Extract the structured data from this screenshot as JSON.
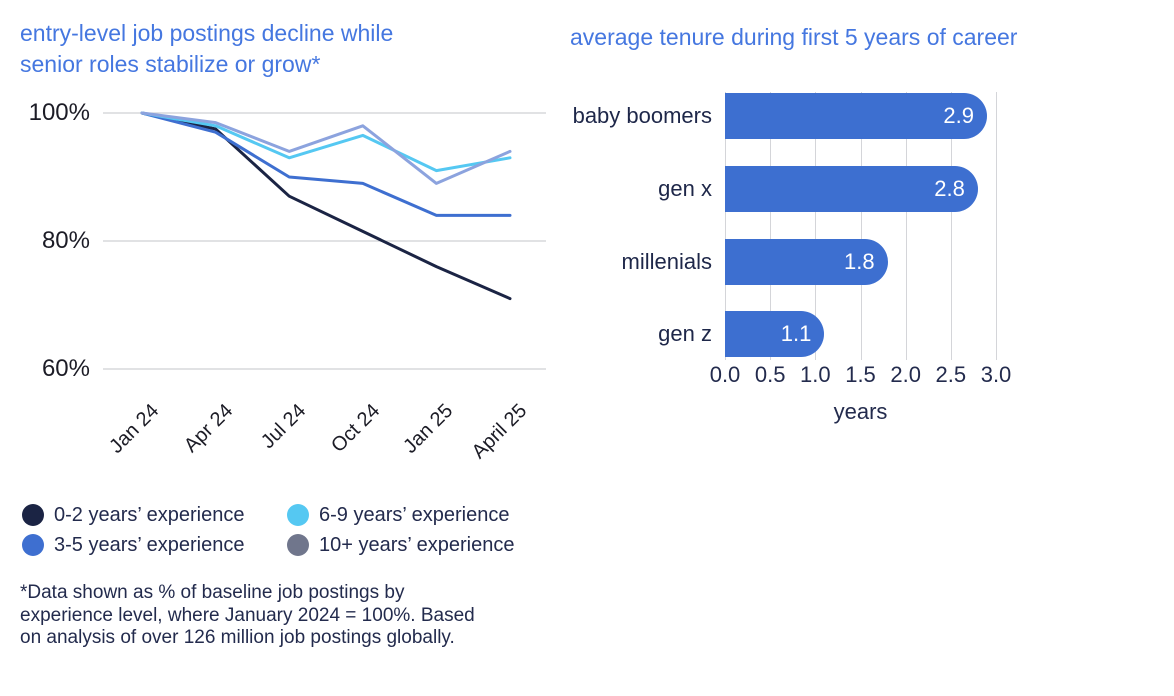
{
  "chart_data": [
    {
      "type": "line",
      "title_lines": [
        "entry-level job postings decline while",
        "senior roles stabilize or grow*"
      ],
      "x": [
        "Jan 24",
        "Apr 24",
        "Jul 24",
        "Oct 24",
        "Jan 25",
        "April 25"
      ],
      "ylim": [
        60,
        100
      ],
      "yticks": [
        {
          "label": "100%",
          "value": 100
        },
        {
          "label": "80%",
          "value": 80
        },
        {
          "label": "60%",
          "value": 60
        }
      ],
      "grid": "horizontal-only",
      "legend_position": "below-left",
      "series": [
        {
          "name": "0-2 years’ experience",
          "color": "#1b2444",
          "values": [
            100,
            97.5,
            87,
            81.5,
            76,
            71
          ]
        },
        {
          "name": "3-5 years’ experience",
          "color": "#3e6fd0",
          "values": [
            100,
            97,
            90,
            89,
            84,
            84
          ]
        },
        {
          "name": "6-9 years’ experience",
          "color": "#55c8f2",
          "values": [
            100,
            98,
            93,
            96.5,
            91,
            93
          ]
        },
        {
          "name": "10+ years’ experience",
          "color": "#8ca3de",
          "legend_dot_color": "#70768c",
          "values": [
            100,
            98.5,
            94,
            98,
            89,
            94
          ]
        }
      ]
    },
    {
      "type": "bar",
      "orientation": "horizontal",
      "title": "average tenure during first 5 years of career",
      "categories": [
        "baby boomers",
        "gen x",
        "millenials",
        "gen z"
      ],
      "values": [
        2.9,
        2.8,
        1.8,
        1.1
      ],
      "value_labels": [
        "2.9",
        "2.8",
        "1.8",
        "1.1"
      ],
      "xticks": [
        "0.0",
        "0.5",
        "1.0",
        "1.5",
        "2.0",
        "2.5",
        "3.0"
      ],
      "xlabel": "years",
      "xlim": [
        0,
        3
      ],
      "grid": "vertical-only",
      "bar_color": "#3d6fd0",
      "value_label_color": "#ffffff"
    }
  ],
  "footnote": {
    "lines": [
      "*Data shown as % of baseline job postings by",
      "experience level, where January 2024 = 100%. Based",
      "on analysis of over 126 million job postings globally."
    ]
  },
  "colors": {
    "title_blue": "#4577e0",
    "grid_gray": "#cfd0d4",
    "axis_text_dark": "#1c1c26",
    "body_text_navy": "#232b4d"
  }
}
